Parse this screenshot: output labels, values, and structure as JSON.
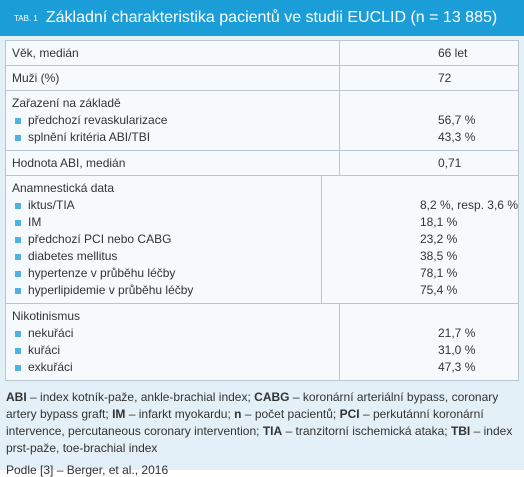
{
  "header": {
    "tag": "TAB. 1",
    "title": "Základní charakteristika pacientů ve studii EUCLID (n = 13 885)"
  },
  "table": {
    "rows": [
      {
        "label": "Věk, medián",
        "value": "66 let"
      },
      {
        "label": "Muži (%)",
        "value": "72"
      },
      {
        "label": "Zařazení na základě",
        "items": [
          {
            "label": "předchozí revaskularizace",
            "value": "56,7 %"
          },
          {
            "label": "splnění kritéria ABI/TBI",
            "value": "43,3 %"
          }
        ]
      },
      {
        "label": "Hodnota ABI, medián",
        "value": "0,71"
      },
      {
        "label": "Anamnestická data",
        "items": [
          {
            "label": "iktus/TIA",
            "value": "8,2 %, resp. 3,6 %"
          },
          {
            "label": "IM",
            "value": "18,1 %"
          },
          {
            "label": "předchozí PCI nebo CABG",
            "value": "23,2 %"
          },
          {
            "label": "diabetes mellitus",
            "value": "38,5 %"
          },
          {
            "label": "hypertenze v průběhu léčby",
            "value": "78,1 %"
          },
          {
            "label": "hyperlipidemie v průběhu léčby",
            "value": "75,4 %"
          }
        ]
      },
      {
        "label": "Nikotinismus",
        "items": [
          {
            "label": "nekuřáci",
            "value": "21,7 %"
          },
          {
            "label": "kuřáci",
            "value": "31,0 %"
          },
          {
            "label": "exkuřáci",
            "value": "47,3 %"
          }
        ]
      }
    ]
  },
  "footnote": [
    {
      "term": "ABI",
      "definition": "– index kotník-paže, ankle-brachial index;"
    },
    {
      "term": "CABG",
      "definition": "– koronární arteriální bypass, coronary artery bypass graft;"
    },
    {
      "term": "IM",
      "definition": "– infarkt myokardu;"
    },
    {
      "term": "n",
      "definition": "– počet pacientů;"
    },
    {
      "term": "PCI",
      "definition": "– perkutánní koronární intervence, percutaneous coronary intervention;"
    },
    {
      "term": "TIA",
      "definition": "– tranzitorní ischemická ataka;"
    },
    {
      "term": "TBI",
      "definition": "– index prst-paže, toe-brachial index"
    }
  ],
  "source": "Podle [3] – Berger, et al., 2016"
}
